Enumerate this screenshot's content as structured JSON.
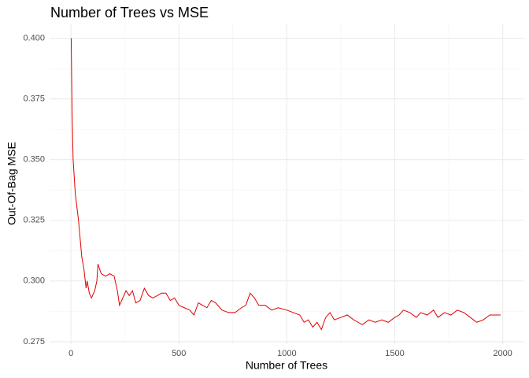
{
  "chart_data": {
    "type": "line",
    "title": "Number of Trees vs MSE",
    "x_label": "Number of Trees",
    "y_label": "Out-Of-Bag MSE",
    "x": [
      1,
      5,
      10,
      20,
      35,
      50,
      60,
      70,
      75,
      85,
      95,
      110,
      120,
      125,
      140,
      160,
      180,
      200,
      215,
      225,
      240,
      255,
      270,
      285,
      300,
      320,
      340,
      360,
      380,
      400,
      420,
      440,
      460,
      480,
      500,
      525,
      550,
      570,
      590,
      610,
      630,
      650,
      670,
      700,
      730,
      760,
      790,
      810,
      830,
      850,
      870,
      900,
      930,
      960,
      1000,
      1030,
      1060,
      1080,
      1100,
      1120,
      1140,
      1160,
      1180,
      1200,
      1220,
      1250,
      1280,
      1310,
      1330,
      1350,
      1380,
      1410,
      1440,
      1470,
      1500,
      1520,
      1540,
      1570,
      1600,
      1620,
      1650,
      1680,
      1700,
      1730,
      1760,
      1790,
      1820,
      1850,
      1880,
      1910,
      1940,
      1970,
      1990
    ],
    "series": [
      {
        "color": "#e00000",
        "values": [
          0.4,
          0.37,
          0.35,
          0.336,
          0.325,
          0.31,
          0.305,
          0.297,
          0.3,
          0.295,
          0.293,
          0.296,
          0.3,
          0.307,
          0.303,
          0.302,
          0.303,
          0.302,
          0.296,
          0.29,
          0.293,
          0.296,
          0.294,
          0.296,
          0.291,
          0.292,
          0.297,
          0.294,
          0.293,
          0.294,
          0.295,
          0.295,
          0.292,
          0.293,
          0.29,
          0.289,
          0.288,
          0.286,
          0.291,
          0.29,
          0.289,
          0.292,
          0.291,
          0.288,
          0.287,
          0.287,
          0.289,
          0.29,
          0.295,
          0.293,
          0.29,
          0.29,
          0.288,
          0.289,
          0.288,
          0.287,
          0.286,
          0.283,
          0.284,
          0.281,
          0.283,
          0.28,
          0.285,
          0.287,
          0.284,
          0.285,
          0.286,
          0.284,
          0.283,
          0.282,
          0.284,
          0.283,
          0.284,
          0.283,
          0.285,
          0.286,
          0.288,
          0.287,
          0.285,
          0.287,
          0.286,
          0.288,
          0.285,
          0.287,
          0.286,
          0.288,
          0.287,
          0.285,
          0.283,
          0.284,
          0.286,
          0.286,
          0.286
        ]
      }
    ],
    "xlim": [
      -99,
      2100
    ],
    "ylim": [
      0.274,
      0.406
    ],
    "xticks": [
      0,
      500,
      1000,
      1500,
      2000
    ],
    "yticks": [
      {
        "value": 0.275,
        "label": "0.275"
      },
      {
        "value": 0.3,
        "label": "0.300"
      },
      {
        "value": 0.325,
        "label": "0.325"
      },
      {
        "value": 0.35,
        "label": "0.350"
      },
      {
        "value": 0.375,
        "label": "0.375"
      },
      {
        "value": 0.4,
        "label": "0.400"
      }
    ],
    "minor_xticks": [
      250,
      750,
      1250,
      1750
    ],
    "minor_yticks": [
      0.2875,
      0.3125,
      0.3375,
      0.3625,
      0.3875
    ],
    "grid": true
  }
}
